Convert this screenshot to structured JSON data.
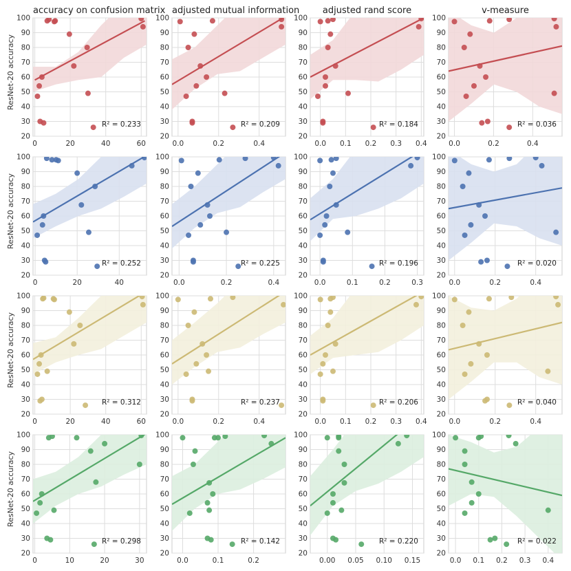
{
  "figure": {
    "col_titles": [
      "accuracy on confusion matrix",
      "adjusted mutual information",
      "adjusted rand score",
      "v-measure"
    ],
    "row_ylabel": "ResNet-20 accuracy",
    "colors": [
      "#c44e52",
      "#4c72b0",
      "#ccb974",
      "#55a868"
    ],
    "band_colors": [
      "#f2d8d9",
      "#d8e0ef",
      "#f3efdd",
      "#dbeedf"
    ]
  },
  "chart_data": [
    {
      "type": "scatter",
      "row": 0,
      "col": 0,
      "title": "accuracy on confusion matrix",
      "ylabel": "ResNet-20 accuracy",
      "xlim": [
        -1,
        63
      ],
      "ylim": [
        20,
        100
      ],
      "xticks": [
        0,
        20,
        40,
        60
      ],
      "yticks": [
        20,
        30,
        40,
        50,
        60,
        70,
        80,
        90,
        100
      ],
      "x": [
        1.5,
        2.5,
        3,
        4,
        5,
        7,
        8,
        11,
        11.5,
        19.5,
        22,
        29.5,
        30,
        33,
        60,
        61
      ],
      "y": [
        47,
        54,
        30,
        60,
        29,
        98,
        99,
        97.5,
        98,
        89,
        67.5,
        80,
        49,
        26,
        99.5,
        94
      ],
      "fit": {
        "x0": 0,
        "y0": 58,
        "x1": 62,
        "y1": 98
      },
      "band_upper": [
        67,
        67,
        77,
        95,
        110,
        125
      ],
      "band_lower": [
        50,
        55,
        58,
        60,
        73,
        82
      ],
      "r2_label": "R² = 0.233"
    },
    {
      "type": "scatter",
      "row": 0,
      "col": 1,
      "title": "adjusted mutual information",
      "ylabel": "ResNet-20 accuracy",
      "xlim": [
        -0.03,
        0.53
      ],
      "ylim": [
        20,
        100
      ],
      "xticks": [
        0.0,
        0.2,
        0.4
      ],
      "yticks": [
        20,
        30,
        40,
        50,
        60,
        70,
        80,
        90,
        100
      ],
      "x": [
        0.01,
        0.04,
        0.05,
        0.07,
        0.07,
        0.08,
        0.09,
        0.11,
        0.14,
        0.17,
        0.23,
        0.27,
        0.51,
        0.51
      ],
      "y": [
        97.5,
        47,
        80,
        30,
        29,
        89,
        54,
        67.5,
        60,
        98,
        49,
        26,
        99,
        94
      ],
      "fit": {
        "x0": -0.03,
        "y0": 55,
        "x1": 0.53,
        "y1": 101
      },
      "band_upper": [
        72,
        80,
        95,
        110,
        125,
        125
      ],
      "band_lower": [
        38,
        52,
        62,
        64,
        73,
        82
      ],
      "r2_label": "R² = 0.209"
    },
    {
      "type": "scatter",
      "row": 0,
      "col": 2,
      "title": "adjusted rand score",
      "ylabel": "ResNet-20 accuracy",
      "xlim": [
        -0.04,
        0.41
      ],
      "ylim": [
        20,
        100
      ],
      "xticks": [
        0.0,
        0.1,
        0.2,
        0.3,
        0.4
      ],
      "yticks": [
        20,
        30,
        40,
        50,
        60,
        70,
        80,
        90,
        100
      ],
      "x": [
        -0.01,
        0.0,
        0.01,
        0.01,
        0.02,
        0.02,
        0.03,
        0.03,
        0.04,
        0.05,
        0.06,
        0.11,
        0.21,
        0.39,
        0.4
      ],
      "y": [
        47,
        97.5,
        30,
        29,
        54,
        60,
        80,
        98,
        89,
        99,
        67.5,
        49,
        26,
        94,
        99.5
      ],
      "fit": {
        "x0": -0.04,
        "y0": 60,
        "x1": 0.41,
        "y1": 100
      },
      "band_upper": [
        75,
        85,
        105,
        120,
        125,
        125
      ],
      "band_lower": [
        45,
        58,
        58,
        57,
        65,
        75
      ],
      "r2_label": "R² = 0.184"
    },
    {
      "type": "scatter",
      "row": 0,
      "col": 3,
      "title": "v-measure",
      "ylabel": "ResNet-20 accuracy",
      "xlim": [
        -0.03,
        0.55
      ],
      "ylim": [
        20,
        100
      ],
      "xticks": [
        0.0,
        0.2,
        0.4
      ],
      "yticks": [
        20,
        30,
        40,
        50,
        60,
        70,
        80,
        90,
        100
      ],
      "x": [
        0.0,
        0.05,
        0.06,
        0.08,
        0.1,
        0.13,
        0.14,
        0.16,
        0.17,
        0.18,
        0.28,
        0.28,
        0.51,
        0.51,
        0.52
      ],
      "y": [
        97.5,
        80,
        47,
        89,
        54,
        67.5,
        29,
        60,
        30,
        98,
        26,
        99,
        49,
        99.5,
        94
      ],
      "fit": {
        "x0": -0.03,
        "y0": 64,
        "x1": 0.55,
        "y1": 81
      },
      "band_upper": [
        105,
        95,
        90,
        100,
        115,
        125
      ],
      "band_lower": [
        30,
        42,
        55,
        50,
        40,
        35
      ],
      "r2_label": "R² = 0.036"
    },
    {
      "type": "scatter",
      "row": 1,
      "col": 0,
      "title": "",
      "ylabel": "ResNet-20 accuracy",
      "xlim": [
        -1,
        53
      ],
      "ylim": [
        20,
        100
      ],
      "xticks": [
        0,
        20,
        40
      ],
      "yticks": [
        20,
        30,
        40,
        50,
        60,
        70,
        80,
        90,
        100
      ],
      "x": [
        1,
        3.5,
        4,
        4.5,
        5,
        5.5,
        8,
        10,
        11,
        20,
        22,
        25.5,
        28.5,
        29.5,
        46,
        52
      ],
      "y": [
        47,
        54,
        60,
        30,
        29,
        99,
        98,
        98,
        97.5,
        89,
        67.5,
        49,
        80,
        26,
        94,
        99.5
      ],
      "fit": {
        "x0": -1,
        "y0": 56,
        "x1": 53,
        "y1": 101
      },
      "band_upper": [
        68,
        75,
        85,
        100,
        115,
        125
      ],
      "band_lower": [
        45,
        53,
        60,
        65,
        73,
        82
      ],
      "r2_label": "R² = 0.252"
    },
    {
      "type": "scatter",
      "row": 1,
      "col": 1,
      "title": "",
      "ylabel": "ResNet-20 accuracy",
      "xlim": [
        -0.03,
        0.45
      ],
      "ylim": [
        20,
        100
      ],
      "xticks": [
        0.0,
        0.2,
        0.4
      ],
      "yticks": [
        20,
        30,
        40,
        50,
        60,
        70,
        80,
        90,
        100
      ],
      "x": [
        0.01,
        0.04,
        0.05,
        0.06,
        0.06,
        0.08,
        0.09,
        0.12,
        0.13,
        0.17,
        0.2,
        0.25,
        0.28,
        0.4,
        0.42
      ],
      "y": [
        97.5,
        47,
        80,
        30,
        29,
        89,
        54,
        67.5,
        60,
        98,
        49,
        26,
        99,
        99.5,
        94
      ],
      "fit": {
        "x0": -0.03,
        "y0": 53,
        "x1": 0.45,
        "y1": 103
      },
      "band_upper": [
        68,
        80,
        95,
        110,
        125,
        125
      ],
      "band_lower": [
        38,
        52,
        62,
        66,
        76,
        85
      ],
      "r2_label": "R² = 0.225"
    },
    {
      "type": "scatter",
      "row": 1,
      "col": 2,
      "title": "",
      "ylabel": "ResNet-20 accuracy",
      "xlim": [
        -0.03,
        0.32
      ],
      "ylim": [
        20,
        100
      ],
      "xticks": [
        0.0,
        0.1,
        0.2,
        0.3
      ],
      "yticks": [
        20,
        30,
        40,
        50,
        60,
        70,
        80,
        90,
        100
      ],
      "x": [
        0.0,
        0.0,
        0.01,
        0.01,
        0.015,
        0.02,
        0.03,
        0.035,
        0.04,
        0.05,
        0.05,
        0.085,
        0.16,
        0.28,
        0.3
      ],
      "y": [
        97.5,
        47,
        30,
        29,
        54,
        60,
        80,
        98,
        89,
        99,
        67.5,
        49,
        26,
        94,
        99.5
      ],
      "fit": {
        "x0": -0.03,
        "y0": 57.5,
        "x1": 0.32,
        "y1": 105
      },
      "band_upper": [
        72,
        85,
        105,
        120,
        125,
        125
      ],
      "band_lower": [
        43,
        58,
        60,
        65,
        72,
        82
      ],
      "r2_label": "R² = 0.196"
    },
    {
      "type": "scatter",
      "row": 1,
      "col": 3,
      "title": "",
      "ylabel": "ResNet-20 accuracy",
      "xlim": [
        -0.03,
        0.53
      ],
      "ylim": [
        20,
        100
      ],
      "xticks": [
        0.0,
        0.2,
        0.4
      ],
      "yticks": [
        20,
        30,
        40,
        50,
        60,
        70,
        80,
        90,
        100
      ],
      "x": [
        0.0,
        0.04,
        0.05,
        0.07,
        0.08,
        0.12,
        0.13,
        0.15,
        0.16,
        0.17,
        0.26,
        0.27,
        0.4,
        0.43,
        0.5
      ],
      "y": [
        97.5,
        80,
        47,
        89,
        54,
        67.5,
        29,
        60,
        30,
        98,
        26,
        99,
        99.5,
        94,
        49
      ],
      "fit": {
        "x0": -0.03,
        "y0": 65,
        "x1": 0.53,
        "y1": 79
      },
      "band_upper": [
        105,
        95,
        90,
        95,
        110,
        125
      ],
      "band_lower": [
        30,
        42,
        55,
        53,
        45,
        40
      ],
      "r2_label": "R² = 0.020"
    },
    {
      "type": "scatter",
      "row": 2,
      "col": 0,
      "title": "",
      "ylabel": "ResNet-20 accuracy",
      "xlim": [
        -1,
        63
      ],
      "ylim": [
        20,
        100
      ],
      "xticks": [
        0,
        20,
        40,
        60
      ],
      "yticks": [
        20,
        30,
        40,
        50,
        60,
        70,
        80,
        90,
        100
      ],
      "x": [
        1.5,
        2.5,
        3,
        3.5,
        4,
        4.5,
        5,
        7,
        10.5,
        11,
        19.5,
        22,
        25.5,
        28.5,
        60.5,
        61
      ],
      "y": [
        47,
        54,
        29,
        60,
        30,
        98,
        98.5,
        49,
        98,
        97.5,
        89,
        67.5,
        80,
        26,
        99.5,
        94
      ],
      "fit": {
        "x0": -1,
        "y0": 57,
        "x1": 63,
        "y1": 103
      },
      "band_upper": [
        68,
        72,
        85,
        100,
        115,
        125
      ],
      "band_lower": [
        47,
        55,
        60,
        64,
        73,
        82
      ],
      "r2_label": "R² = 0.312"
    },
    {
      "type": "scatter",
      "row": 2,
      "col": 1,
      "title": "",
      "ylabel": "ResNet-20 accuracy",
      "xlim": [
        -0.03,
        0.53
      ],
      "ylim": [
        20,
        100
      ],
      "xticks": [
        0.0,
        0.2,
        0.4
      ],
      "yticks": [
        20,
        30,
        40,
        50,
        60,
        70,
        80,
        90,
        100
      ],
      "x": [
        0.0,
        0.04,
        0.05,
        0.07,
        0.07,
        0.08,
        0.09,
        0.12,
        0.14,
        0.15,
        0.16,
        0.27,
        0.51,
        0.52
      ],
      "y": [
        97.5,
        47,
        80,
        30,
        29,
        89,
        54,
        67.5,
        60,
        49,
        98,
        99,
        26,
        94
      ],
      "fit": {
        "x0": -0.03,
        "y0": 54,
        "x1": 0.53,
        "y1": 103
      },
      "band_upper": [
        70,
        82,
        95,
        110,
        125,
        125
      ],
      "band_lower": [
        40,
        52,
        62,
        65,
        74,
        82
      ],
      "r2_label": "R² = 0.237"
    },
    {
      "type": "scatter",
      "row": 2,
      "col": 2,
      "title": "",
      "ylabel": "ResNet-20 accuracy",
      "xlim": [
        -0.04,
        0.41
      ],
      "ylim": [
        20,
        100
      ],
      "xticks": [
        0.0,
        0.1,
        0.2,
        0.3,
        0.4
      ],
      "yticks": [
        20,
        30,
        40,
        50,
        60,
        70,
        80,
        90,
        100
      ],
      "x": [
        0.0,
        0.0,
        0.01,
        0.01,
        0.01,
        0.02,
        0.03,
        0.04,
        0.04,
        0.05,
        0.05,
        0.06,
        0.21,
        0.38,
        0.4
      ],
      "y": [
        97.5,
        47,
        54,
        30,
        29,
        60,
        80,
        98,
        89,
        99,
        49,
        67.5,
        26,
        94,
        99.5
      ],
      "fit": {
        "x0": -0.04,
        "y0": 60,
        "x1": 0.41,
        "y1": 103
      },
      "band_upper": [
        73,
        85,
        105,
        120,
        125,
        125
      ],
      "band_lower": [
        47,
        58,
        60,
        62,
        70,
        80
      ],
      "r2_label": "R² = 0.206"
    },
    {
      "type": "scatter",
      "row": 2,
      "col": 3,
      "title": "",
      "ylabel": "ResNet-20 accuracy",
      "xlim": [
        -0.03,
        0.53
      ],
      "ylim": [
        20,
        100
      ],
      "xticks": [
        0.0,
        0.2,
        0.4
      ],
      "yticks": [
        20,
        30,
        40,
        50,
        60,
        70,
        80,
        90,
        100
      ],
      "x": [
        0.0,
        0.04,
        0.05,
        0.07,
        0.08,
        0.12,
        0.15,
        0.16,
        0.16,
        0.17,
        0.27,
        0.28,
        0.46,
        0.5,
        0.51
      ],
      "y": [
        97.5,
        80,
        47,
        89,
        54,
        67.5,
        29,
        60,
        30,
        98,
        26,
        99,
        49,
        99.5,
        94
      ],
      "fit": {
        "x0": -0.03,
        "y0": 63.5,
        "x1": 0.53,
        "y1": 82
      },
      "band_upper": [
        100,
        92,
        90,
        98,
        115,
        125
      ],
      "band_lower": [
        30,
        42,
        55,
        55,
        45,
        40
      ],
      "r2_label": "R² = 0.040"
    },
    {
      "type": "scatter",
      "row": 3,
      "col": 0,
      "title": "",
      "ylabel": "ResNet-20 accuracy",
      "xlim": [
        -0.5,
        32
      ],
      "ylim": [
        20,
        100
      ],
      "xticks": [
        0,
        10,
        20,
        30
      ],
      "yticks": [
        20,
        30,
        40,
        50,
        60,
        70,
        80,
        90,
        100
      ],
      "x": [
        0.5,
        1.5,
        2,
        3.5,
        4,
        4.5,
        5,
        5.5,
        12,
        16,
        17,
        17.5,
        20,
        30,
        30.5
      ],
      "y": [
        47,
        54,
        60,
        30,
        98,
        29,
        99,
        49,
        98,
        89,
        26,
        68,
        94,
        80,
        99.5
      ],
      "fit": {
        "x0": -0.5,
        "y0": 55,
        "x1": 32,
        "y1": 101
      },
      "band_upper": [
        70,
        75,
        85,
        100,
        115,
        125
      ],
      "band_lower": [
        40,
        52,
        60,
        65,
        73,
        80
      ],
      "r2_label": "R² = 0.298"
    },
    {
      "type": "scatter",
      "row": 3,
      "col": 1,
      "title": "",
      "ylabel": "ResNet-20 accuracy",
      "xlim": [
        -0.03,
        0.29
      ],
      "ylim": [
        20,
        100
      ],
      "xticks": [
        0.0,
        0.1,
        0.2
      ],
      "yticks": [
        20,
        30,
        40,
        50,
        60,
        70,
        80,
        90,
        100
      ],
      "x": [
        0.0,
        0.02,
        0.03,
        0.035,
        0.07,
        0.07,
        0.075,
        0.075,
        0.08,
        0.085,
        0.09,
        0.1,
        0.12,
        0.14,
        0.23,
        0.25
      ],
      "y": [
        98,
        47,
        80,
        89,
        30,
        54,
        49,
        67.5,
        29,
        60,
        98,
        98,
        99,
        26,
        99.5,
        94
      ],
      "fit": {
        "x0": -0.03,
        "y0": 53,
        "x1": 0.29,
        "y1": 98
      },
      "band_upper": [
        72,
        80,
        95,
        110,
        125,
        125
      ],
      "band_lower": [
        35,
        50,
        60,
        63,
        70,
        78
      ],
      "r2_label": "R² = 0.142"
    },
    {
      "type": "scatter",
      "row": 3,
      "col": 2,
      "title": "",
      "ylabel": "ResNet-20 accuracy",
      "xlim": [
        -0.03,
        0.17
      ],
      "ylim": [
        20,
        100
      ],
      "xticks": [
        0.0,
        0.05,
        0.1,
        0.15
      ],
      "yticks": [
        20,
        30,
        40,
        50,
        60,
        70,
        80,
        90,
        100
      ],
      "x": [
        0.0,
        0.0,
        0.01,
        0.01,
        0.01,
        0.015,
        0.02,
        0.02,
        0.02,
        0.025,
        0.03,
        0.03,
        0.06,
        0.125,
        0.14
      ],
      "y": [
        47,
        98,
        54,
        60,
        30,
        29,
        89,
        98,
        99,
        49,
        80,
        67.5,
        26,
        94,
        99.5
      ],
      "fit": {
        "x0": -0.03,
        "y0": 52,
        "x1": 0.17,
        "y1": 115
      },
      "band_upper": [
        72,
        90,
        110,
        125,
        125,
        125
      ],
      "band_lower": [
        32,
        52,
        62,
        67,
        75,
        85
      ],
      "r2_label": "R² = 0.220"
    },
    {
      "type": "scatter",
      "row": 3,
      "col": 3,
      "title": "",
      "ylabel": "ResNet-20 accuracy",
      "xlim": [
        -0.03,
        0.46
      ],
      "ylim": [
        20,
        100
      ],
      "xticks": [
        0.0,
        0.1,
        0.2,
        0.3,
        0.4
      ],
      "yticks": [
        20,
        30,
        40,
        50,
        60,
        70,
        80,
        90,
        100
      ],
      "x": [
        0.0,
        0.04,
        0.04,
        0.04,
        0.07,
        0.07,
        0.1,
        0.1,
        0.11,
        0.15,
        0.17,
        0.22,
        0.23,
        0.26,
        0.4
      ],
      "y": [
        98,
        80,
        89,
        47,
        54,
        68,
        98,
        60,
        99,
        29,
        30,
        26,
        99.5,
        94,
        49
      ],
      "fit": {
        "x0": -0.03,
        "y0": 77,
        "x1": 0.46,
        "y1": 59
      },
      "band_upper": [
        100,
        95,
        88,
        92,
        105,
        115
      ],
      "band_lower": [
        52,
        60,
        58,
        45,
        30,
        15
      ],
      "r2_label": "R² = 0.022"
    }
  ]
}
